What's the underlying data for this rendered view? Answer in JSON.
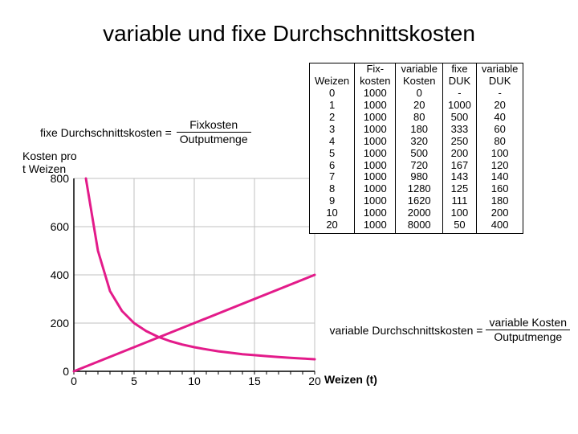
{
  "title": "variable und fixe Durchschnittskosten",
  "formula1": {
    "lhs": "fixe Durchschnittskosten =",
    "num": "Fixkosten",
    "den": "Outputmenge"
  },
  "formula2": {
    "lhs": "variable Durchschnittskosten =",
    "num": "variable Kosten",
    "den": "Outputmenge"
  },
  "ylabel_line1": "Kosten pro",
  "ylabel_line2": " t Weizen",
  "xlabel": "Weizen (t)",
  "chart": {
    "type": "line",
    "xlim": [
      0,
      20
    ],
    "ylim": [
      0,
      800
    ],
    "xticks": [
      0,
      5,
      10,
      15,
      20
    ],
    "yticks": [
      0,
      200,
      400,
      600,
      800
    ],
    "grid_color": "#c0c0c0",
    "axis_color": "#000000",
    "background_color": "#ffffff",
    "series": [
      {
        "name": "fixe DUK",
        "color": "#e31b8a",
        "width": 3,
        "data": [
          [
            1,
            1000
          ],
          [
            2,
            500
          ],
          [
            3,
            333
          ],
          [
            4,
            250
          ],
          [
            5,
            200
          ],
          [
            6,
            167
          ],
          [
            7,
            143
          ],
          [
            8,
            125
          ],
          [
            9,
            111
          ],
          [
            10,
            100
          ],
          [
            11,
            91
          ],
          [
            12,
            83
          ],
          [
            13,
            77
          ],
          [
            14,
            71
          ],
          [
            15,
            67
          ],
          [
            16,
            63
          ],
          [
            17,
            59
          ],
          [
            18,
            56
          ],
          [
            19,
            53
          ],
          [
            20,
            50
          ]
        ]
      },
      {
        "name": "variable DUK",
        "color": "#e31b8a",
        "width": 3,
        "data": [
          [
            0,
            0
          ],
          [
            1,
            20
          ],
          [
            2,
            40
          ],
          [
            3,
            60
          ],
          [
            4,
            80
          ],
          [
            5,
            100
          ],
          [
            6,
            120
          ],
          [
            7,
            140
          ],
          [
            8,
            160
          ],
          [
            9,
            180
          ],
          [
            10,
            200
          ],
          [
            20,
            400
          ]
        ]
      }
    ]
  },
  "table": {
    "columns": [
      "Weizen",
      "Fix-\nkosten",
      "variable\nKosten",
      "fixe\nDUK",
      "variable\nDUK"
    ],
    "rows": [
      [
        "0",
        "1000",
        "0",
        "-",
        "-"
      ],
      [
        "1",
        "1000",
        "20",
        "1000",
        "20"
      ],
      [
        "2",
        "1000",
        "80",
        "500",
        "40"
      ],
      [
        "3",
        "1000",
        "180",
        "333",
        "60"
      ],
      [
        "4",
        "1000",
        "320",
        "250",
        "80"
      ],
      [
        "5",
        "1000",
        "500",
        "200",
        "100"
      ],
      [
        "6",
        "1000",
        "720",
        "167",
        "120"
      ],
      [
        "7",
        "1000",
        "980",
        "143",
        "140"
      ],
      [
        "8",
        "1000",
        "1280",
        "125",
        "160"
      ],
      [
        "9",
        "1000",
        "1620",
        "111",
        "180"
      ],
      [
        "10",
        "1000",
        "2000",
        "100",
        "200"
      ],
      [
        "20",
        "1000",
        "8000",
        "50",
        "400"
      ]
    ]
  }
}
